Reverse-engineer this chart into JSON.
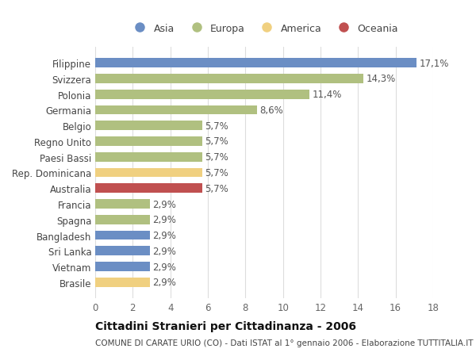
{
  "categories": [
    "Filippine",
    "Svizzera",
    "Polonia",
    "Germania",
    "Belgio",
    "Regno Unito",
    "Paesi Bassi",
    "Rep. Dominicana",
    "Australia",
    "Francia",
    "Spagna",
    "Bangladesh",
    "Sri Lanka",
    "Vietnam",
    "Brasile"
  ],
  "values": [
    17.1,
    14.3,
    11.4,
    8.6,
    5.7,
    5.7,
    5.7,
    5.7,
    5.7,
    2.9,
    2.9,
    2.9,
    2.9,
    2.9,
    2.9
  ],
  "bar_colors": [
    "#6b8ec4",
    "#b0c080",
    "#b0c080",
    "#b0c080",
    "#b0c080",
    "#b0c080",
    "#b0c080",
    "#f0d080",
    "#c05050",
    "#b0c080",
    "#b0c080",
    "#6b8ec4",
    "#6b8ec4",
    "#6b8ec4",
    "#f0d080"
  ],
  "labels": [
    "17,1%",
    "14,3%",
    "11,4%",
    "8,6%",
    "5,7%",
    "5,7%",
    "5,7%",
    "5,7%",
    "5,7%",
    "2,9%",
    "2,9%",
    "2,9%",
    "2,9%",
    "2,9%",
    "2,9%"
  ],
  "legend_labels": [
    "Asia",
    "Europa",
    "America",
    "Oceania"
  ],
  "legend_colors": [
    "#6b8ec4",
    "#b0c080",
    "#f0d080",
    "#c05050"
  ],
  "title": "Cittadini Stranieri per Cittadinanza - 2006",
  "subtitle": "COMUNE DI CARATE URIO (CO) - Dati ISTAT al 1° gennaio 2006 - Elaborazione TUTTITALIA.IT",
  "xlim": [
    0,
    18
  ],
  "xticks": [
    0,
    2,
    4,
    6,
    8,
    10,
    12,
    14,
    16,
    18
  ],
  "background_color": "#ffffff",
  "grid_color": "#dddddd",
  "bar_height": 0.6,
  "title_fontsize": 10,
  "subtitle_fontsize": 7.5,
  "tick_fontsize": 8.5,
  "label_fontsize": 8.5
}
